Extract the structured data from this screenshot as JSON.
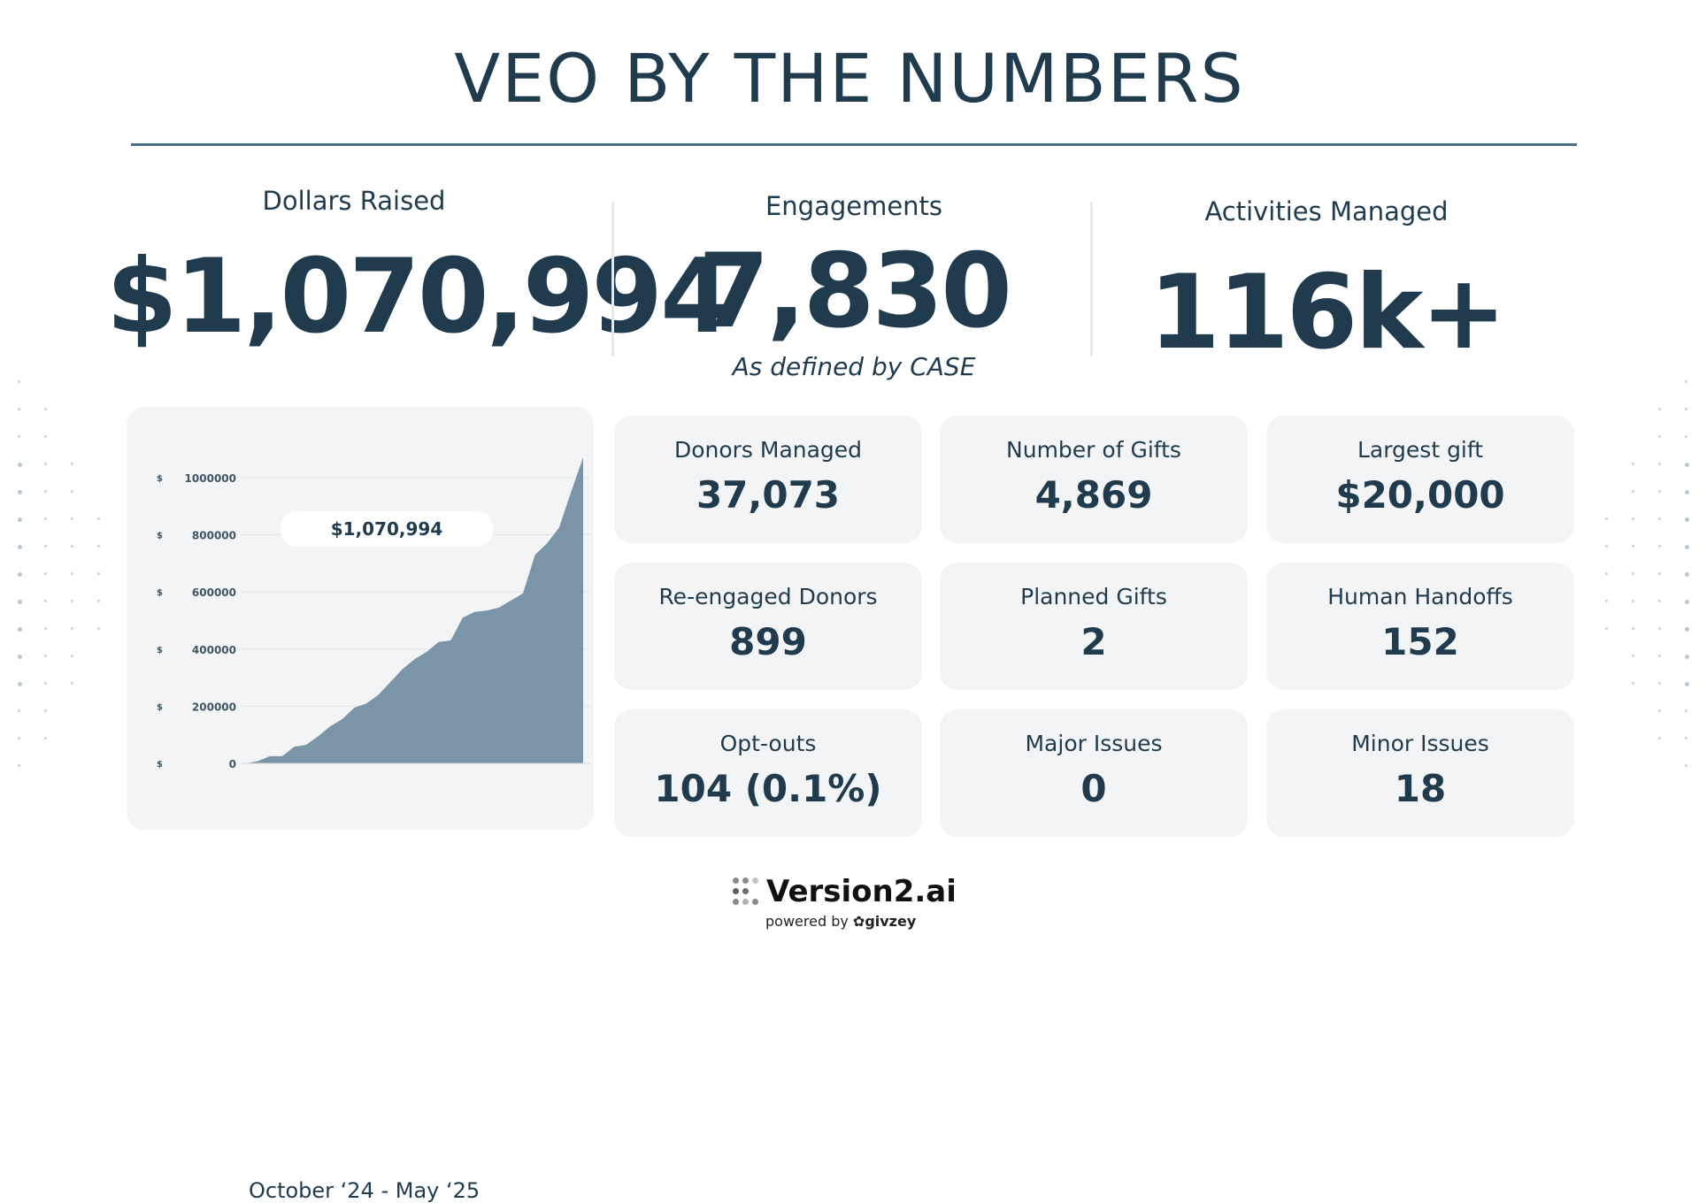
{
  "title": "VEO BY THE NUMBERS",
  "kpis": {
    "dollars": {
      "label": "Dollars Raised",
      "value": "$1,070,994"
    },
    "engagements": {
      "label": "Engagements",
      "value": "7,830",
      "note": "As defined by CASE"
    },
    "activities": {
      "label": "Activities Managed",
      "value": "116k+"
    }
  },
  "stats": [
    {
      "label": "Donors Managed",
      "value": "37,073"
    },
    {
      "label": "Number of Gifts",
      "value": "4,869"
    },
    {
      "label": "Largest gift",
      "value": "$20,000"
    },
    {
      "label": "Re-engaged Donors",
      "value": "899"
    },
    {
      "label": "Planned Gifts",
      "value": "2"
    },
    {
      "label": "Human Handoffs",
      "value": "152"
    },
    {
      "label": "Opt-outs",
      "value": "104 (0.1%)"
    },
    {
      "label": "Major Issues",
      "value": "0"
    },
    {
      "label": "Minor Issues",
      "value": "18"
    }
  ],
  "chart_data": {
    "type": "area",
    "tick_prefix": "$",
    "y_ticks": [
      0,
      200000,
      400000,
      600000,
      800000,
      1000000
    ],
    "ylim": [
      0,
      1070994
    ],
    "values": [
      0,
      8000,
      25000,
      25000,
      58000,
      65000,
      95000,
      130000,
      155000,
      195000,
      210000,
      240000,
      285000,
      330000,
      365000,
      390000,
      425000,
      430000,
      510000,
      530000,
      535000,
      545000,
      570000,
      595000,
      730000,
      770000,
      825000,
      950000,
      1070994
    ],
    "callout": "$1,070,994",
    "xlabel": "October ‘24 - May ‘25",
    "series_color": "#7b95a8",
    "grid": true
  },
  "footer": {
    "brand": "Version2.ai",
    "powered_prefix": "powered by",
    "powered_brand": "givzey"
  }
}
